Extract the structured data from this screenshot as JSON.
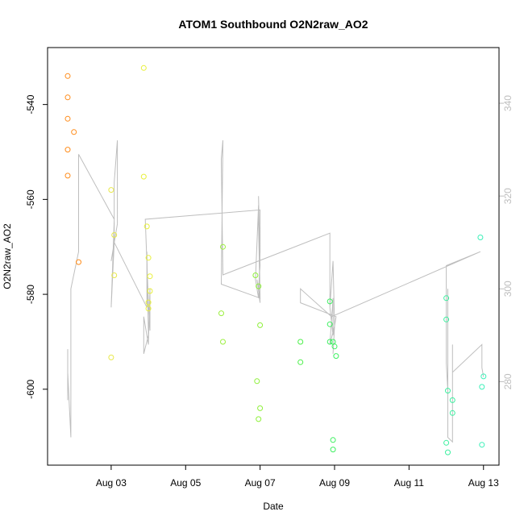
{
  "chart_data": {
    "type": "scatter",
    "title": "ATOM1 Southbound O2N2raw_AO2",
    "xlabel": "Date",
    "ylabel": "O2N2raw_AO2",
    "xlim": [
      "2024-08-01T07:00",
      "2024-08-13T10:00"
    ],
    "ylim": [
      -616,
      -528
    ],
    "y2lim": [
      262,
      352
    ],
    "x_ticks": [
      {
        "value": "2024-08-03",
        "label": "Aug 03"
      },
      {
        "value": "2024-08-05",
        "label": "Aug 05"
      },
      {
        "value": "2024-08-07",
        "label": "Aug 07"
      },
      {
        "value": "2024-08-09",
        "label": "Aug 09"
      },
      {
        "value": "2024-08-11",
        "label": "Aug 11"
      },
      {
        "value": "2024-08-13",
        "label": "Aug 13"
      }
    ],
    "y_ticks": [
      -540,
      -560,
      -580,
      -600
    ],
    "y2_ticks": [
      340,
      320,
      300,
      280
    ],
    "grid": false,
    "points": [
      {
        "x": "2024-08-01T20:00",
        "y": -534.0,
        "color": "#ff8c1a"
      },
      {
        "x": "2024-08-01T20:00",
        "y": -538.5,
        "color": "#ff8c1a"
      },
      {
        "x": "2024-08-01T20:00",
        "y": -543.0,
        "color": "#ff8c1a"
      },
      {
        "x": "2024-08-01T20:00",
        "y": -549.5,
        "color": "#ff8c1a"
      },
      {
        "x": "2024-08-01T20:00",
        "y": -555.0,
        "color": "#ff8c1a"
      },
      {
        "x": "2024-08-02T00:00",
        "y": -545.8,
        "color": "#ff8c1a"
      },
      {
        "x": "2024-08-02T03:00",
        "y": -573.2,
        "color": "#ff8c1a"
      },
      {
        "x": "2024-08-03T00:00",
        "y": -558.0,
        "color": "#e8e84a"
      },
      {
        "x": "2024-08-03T02:00",
        "y": -567.5,
        "color": "#e8e84a"
      },
      {
        "x": "2024-08-03T02:00",
        "y": -576.0,
        "color": "#e8e84a"
      },
      {
        "x": "2024-08-03T00:00",
        "y": -593.3,
        "color": "#e8e84a"
      },
      {
        "x": "2024-08-03T21:00",
        "y": -532.3,
        "color": "#e8f03a"
      },
      {
        "x": "2024-08-03T21:00",
        "y": -555.2,
        "color": "#e8f03a"
      },
      {
        "x": "2024-08-03T23:00",
        "y": -565.7,
        "color": "#e8f03a"
      },
      {
        "x": "2024-08-04T00:00",
        "y": -572.3,
        "color": "#e8f03a"
      },
      {
        "x": "2024-08-04T01:00",
        "y": -576.2,
        "color": "#e8f03a"
      },
      {
        "x": "2024-08-04T01:00",
        "y": -579.3,
        "color": "#e8f03a"
      },
      {
        "x": "2024-08-04T00:00",
        "y": -581.7,
        "color": "#e8f03a"
      },
      {
        "x": "2024-08-04T00:00",
        "y": -583.0,
        "color": "#e8f03a"
      },
      {
        "x": "2024-08-06T00:00",
        "y": -570.0,
        "color": "#9cf040"
      },
      {
        "x": "2024-08-05T23:00",
        "y": -584.0,
        "color": "#9cf040"
      },
      {
        "x": "2024-08-06T00:00",
        "y": -590.0,
        "color": "#9cf040"
      },
      {
        "x": "2024-08-06T21:00",
        "y": -576.0,
        "color": "#8ef03a"
      },
      {
        "x": "2024-08-06T23:00",
        "y": -578.3,
        "color": "#8ef03a"
      },
      {
        "x": "2024-08-07T00:00",
        "y": -586.5,
        "color": "#8ef03a"
      },
      {
        "x": "2024-08-06T22:00",
        "y": -598.3,
        "color": "#8ef03a"
      },
      {
        "x": "2024-08-07T00:00",
        "y": -604.0,
        "color": "#8ef03a"
      },
      {
        "x": "2024-08-06T23:00",
        "y": -606.3,
        "color": "#8ef03a"
      },
      {
        "x": "2024-08-08T02:00",
        "y": -590.0,
        "color": "#4cf04a"
      },
      {
        "x": "2024-08-08T02:00",
        "y": -594.3,
        "color": "#4cf04a"
      },
      {
        "x": "2024-08-08T21:00",
        "y": -581.5,
        "color": "#3df060"
      },
      {
        "x": "2024-08-08T21:00",
        "y": -586.3,
        "color": "#3df060"
      },
      {
        "x": "2024-08-08T21:00",
        "y": -590.0,
        "color": "#3df060"
      },
      {
        "x": "2024-08-08T23:00",
        "y": -590.0,
        "color": "#3df060"
      },
      {
        "x": "2024-08-09T00:00",
        "y": -591.0,
        "color": "#3df060"
      },
      {
        "x": "2024-08-09T01:00",
        "y": -593.0,
        "color": "#3df060"
      },
      {
        "x": "2024-08-08T23:00",
        "y": -610.7,
        "color": "#3df060"
      },
      {
        "x": "2024-08-08T23:00",
        "y": -612.7,
        "color": "#3df060"
      },
      {
        "x": "2024-08-12T00:00",
        "y": -580.8,
        "color": "#3cf0a0"
      },
      {
        "x": "2024-08-12T00:00",
        "y": -585.3,
        "color": "#3cf0a0"
      },
      {
        "x": "2024-08-12T01:00",
        "y": -600.3,
        "color": "#3cf0a0"
      },
      {
        "x": "2024-08-12T04:00",
        "y": -602.3,
        "color": "#3cf0a0"
      },
      {
        "x": "2024-08-12T04:00",
        "y": -605.0,
        "color": "#3cf0a0"
      },
      {
        "x": "2024-08-12T00:00",
        "y": -611.3,
        "color": "#3cf0a0"
      },
      {
        "x": "2024-08-12T01:00",
        "y": -613.3,
        "color": "#3cf0a0"
      },
      {
        "x": "2024-08-12T22:00",
        "y": -568.0,
        "color": "#3cf0b8"
      },
      {
        "x": "2024-08-13T00:00",
        "y": -597.3,
        "color": "#3cf0b8"
      },
      {
        "x": "2024-08-12T23:00",
        "y": -599.5,
        "color": "#3cf0b8"
      },
      {
        "x": "2024-08-12T23:00",
        "y": -611.7,
        "color": "#3cf0b8"
      }
    ],
    "line_y2": {
      "color": "#bebebe",
      "points": [
        [
          "2024-08-01T20:00",
          287
        ],
        [
          "2024-08-01T20:00",
          276
        ],
        [
          "2024-08-01T20:00",
          282
        ],
        [
          "2024-08-01T22:00",
          268
        ],
        [
          "2024-08-01T22:00",
          300
        ],
        [
          "2024-08-02T03:00",
          308
        ],
        [
          "2024-08-02T03:00",
          329
        ],
        [
          "2024-08-03T02:00",
          315
        ],
        [
          "2024-08-03T00:00",
          296
        ],
        [
          "2024-08-03T02:00",
          310
        ],
        [
          "2024-08-03T02:00",
          323
        ],
        [
          "2024-08-03T04:00",
          332
        ],
        [
          "2024-08-03T04:00",
          314
        ],
        [
          "2024-08-03T00:00",
          306
        ],
        [
          "2024-08-03T02:00",
          310
        ],
        [
          "2024-08-03T23:00",
          296
        ],
        [
          "2024-08-03T23:00",
          308
        ],
        [
          "2024-08-04T00:00",
          290
        ],
        [
          "2024-08-03T21:00",
          286
        ],
        [
          "2024-08-03T21:00",
          294
        ],
        [
          "2024-08-04T00:00",
          288
        ],
        [
          "2024-08-04T01:00",
          300
        ],
        [
          "2024-08-04T01:00",
          291
        ],
        [
          "2024-08-04T00:00",
          297
        ],
        [
          "2024-08-03T22:00",
          315
        ],
        [
          "2024-08-07T00:00",
          317
        ],
        [
          "2024-08-07T00:00",
          308
        ],
        [
          "2024-08-06T23:00",
          298
        ],
        [
          "2024-08-06T21:00",
          302
        ],
        [
          "2024-08-06T23:00",
          318
        ],
        [
          "2024-08-06T23:00",
          314
        ],
        [
          "2024-08-07T00:00",
          297
        ],
        [
          "2024-08-06T22:00",
          302
        ],
        [
          "2024-08-07T00:00",
          298
        ],
        [
          "2024-08-06T23:00",
          320
        ],
        [
          "2024-08-07T00:00",
          305
        ],
        [
          "2024-08-06T23:00",
          300
        ],
        [
          "2024-08-07T00:00",
          298
        ],
        [
          "2024-08-05T23:00",
          301
        ],
        [
          "2024-08-06T00:00",
          332
        ],
        [
          "2024-08-05T23:00",
          328
        ],
        [
          "2024-08-06T00:00",
          303
        ],
        [
          "2024-08-08T21:00",
          312
        ],
        [
          "2024-08-08T21:00",
          296
        ],
        [
          "2024-08-08T23:00",
          290
        ],
        [
          "2024-08-08T23:00",
          298
        ],
        [
          "2024-08-08T21:00",
          288
        ],
        [
          "2024-08-09T00:00",
          292
        ],
        [
          "2024-08-08T23:00",
          286
        ],
        [
          "2024-08-09T00:00",
          292
        ],
        [
          "2024-08-08T23:00",
          306
        ],
        [
          "2024-08-08T21:00",
          296
        ],
        [
          "2024-08-08T23:00",
          290
        ],
        [
          "2024-08-09T01:00",
          294
        ],
        [
          "2024-08-08T02:00",
          297
        ],
        [
          "2024-08-08T02:00",
          300
        ],
        [
          "2024-08-08T22:00",
          294
        ],
        [
          "2024-08-12T22:00",
          308
        ],
        [
          "2024-08-12T00:00",
          305
        ],
        [
          "2024-08-12T00:00",
          284
        ],
        [
          "2024-08-12T01:00",
          278
        ],
        [
          "2024-08-12T01:00",
          300
        ],
        [
          "2024-08-12T01:00",
          268
        ],
        [
          "2024-08-12T04:00",
          267
        ],
        [
          "2024-08-12T04:00",
          288
        ],
        [
          "2024-08-12T04:00",
          282
        ],
        [
          "2024-08-12T23:00",
          288
        ],
        [
          "2024-08-12T23:00",
          283
        ],
        [
          "2024-08-13T00:00",
          281
        ]
      ]
    }
  }
}
